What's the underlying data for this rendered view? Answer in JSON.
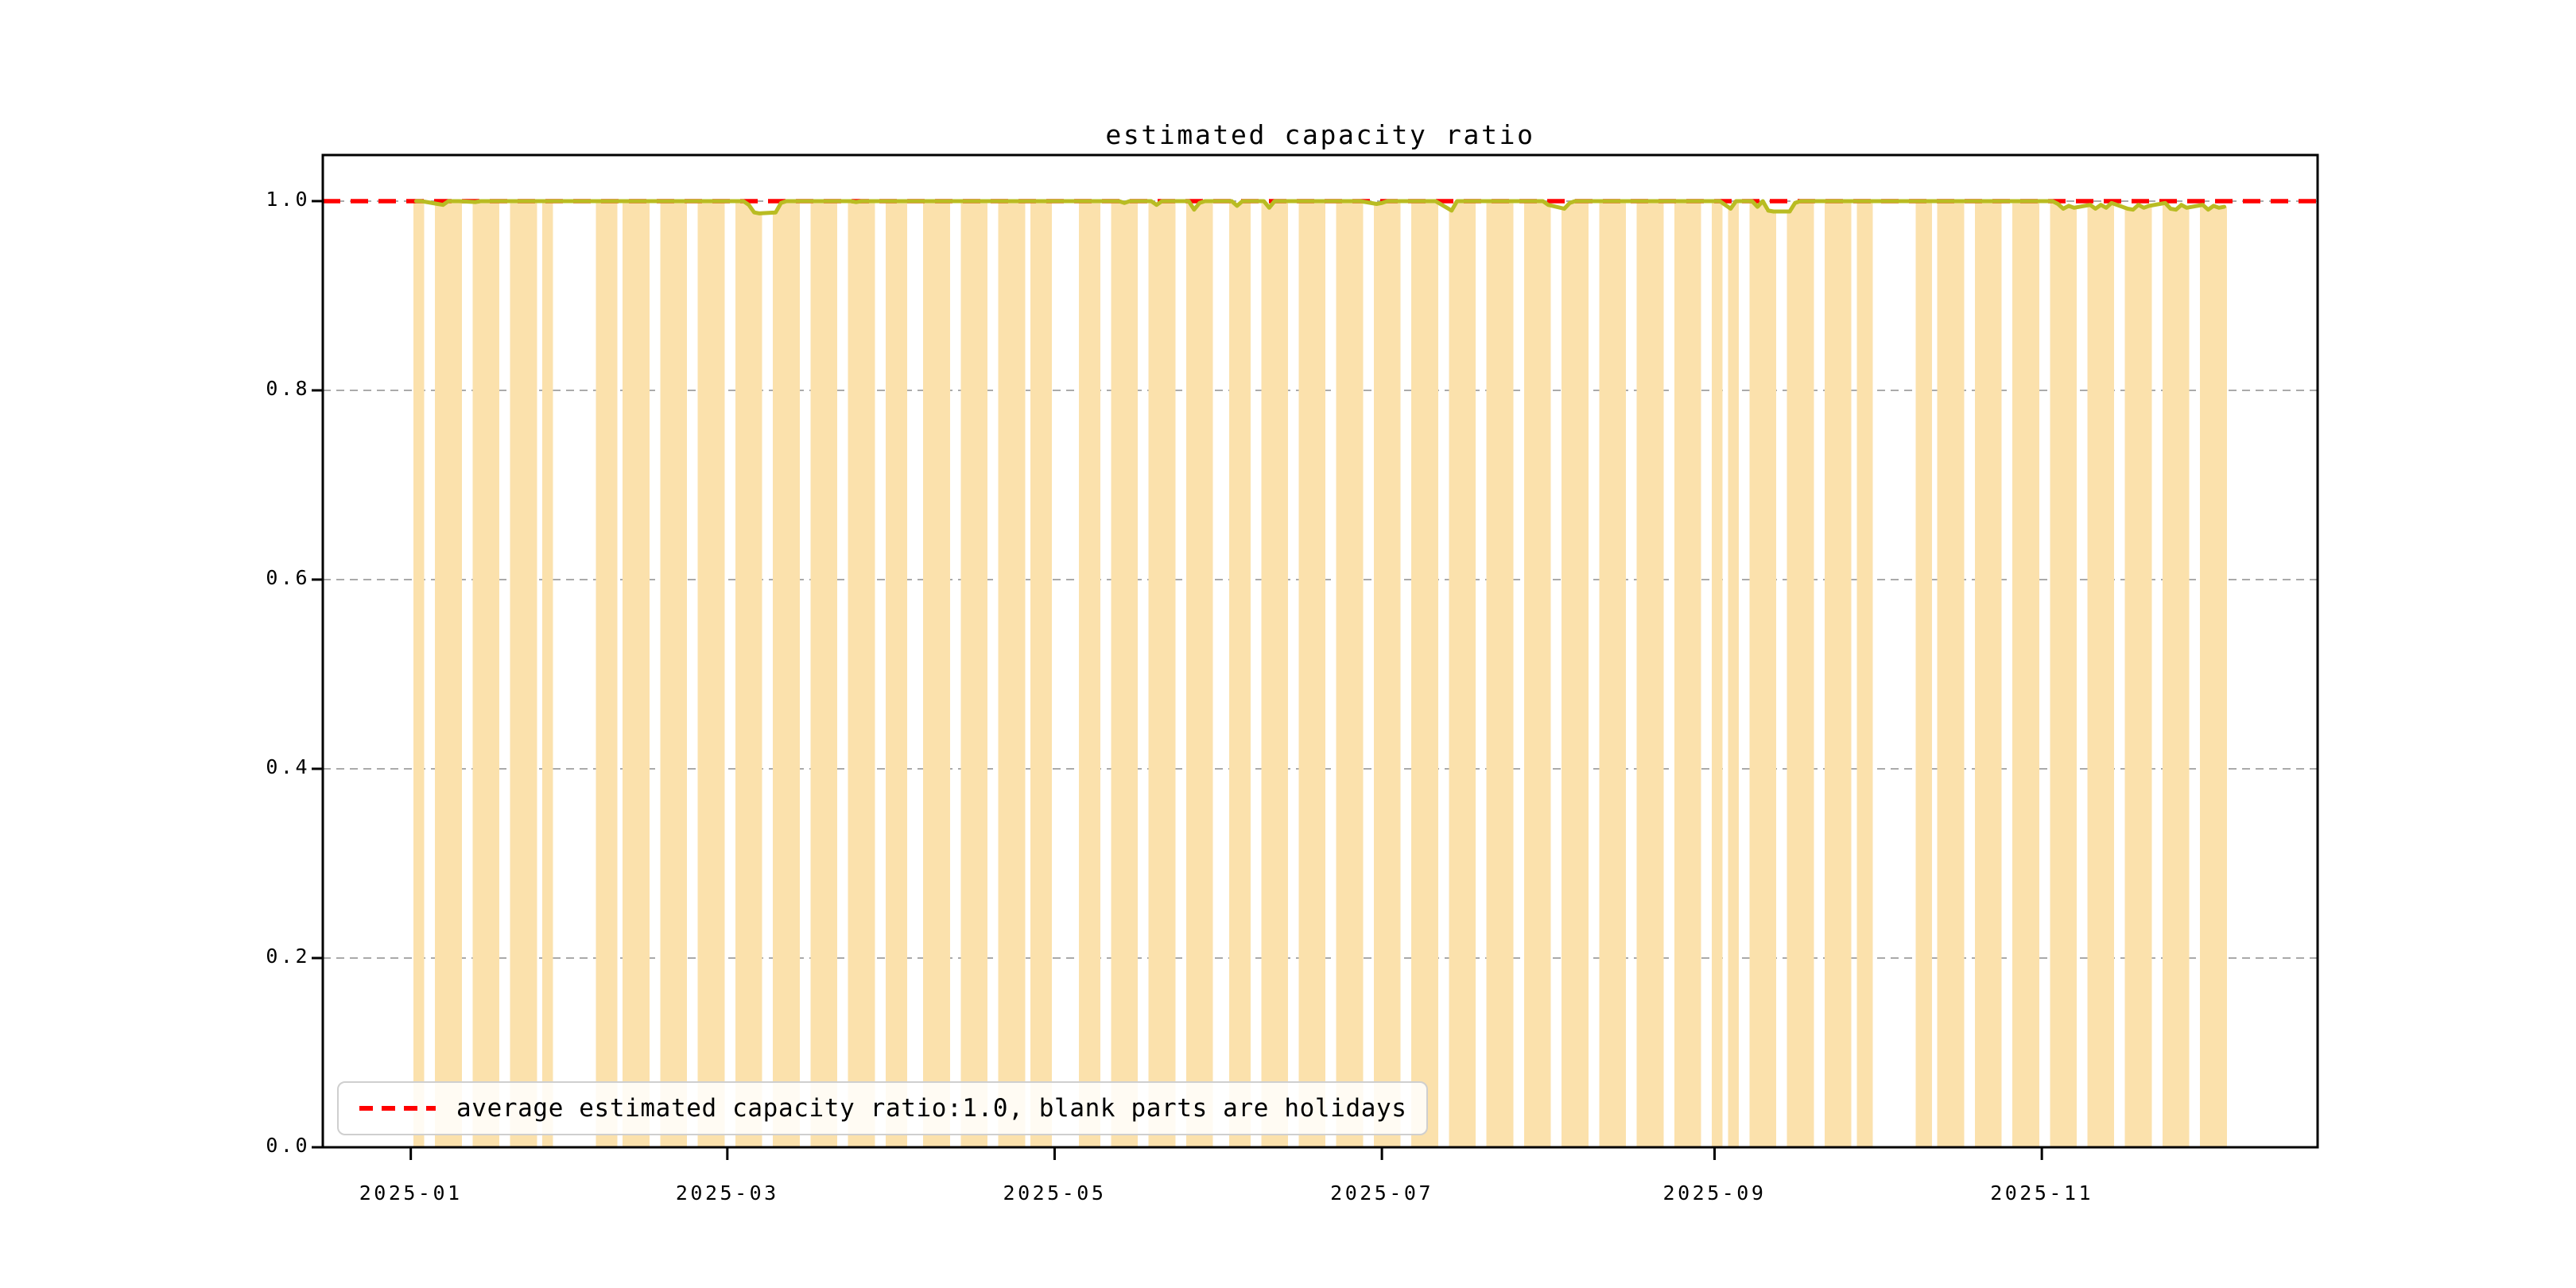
{
  "chart_data": {
    "type": "bar+line",
    "title": "estimated capacity ratio",
    "x_axis": {
      "start_date": "2025-01-01",
      "xlim_days": [
        -16.4,
        355.4
      ],
      "ticks": [
        {
          "day": 0,
          "label": "2025-01"
        },
        {
          "day": 59,
          "label": "2025-03"
        },
        {
          "day": 120,
          "label": "2025-05"
        },
        {
          "day": 181,
          "label": "2025-07"
        },
        {
          "day": 243,
          "label": "2025-09"
        },
        {
          "day": 304,
          "label": "2025-11"
        }
      ]
    },
    "y_axis": {
      "ylim": [
        0,
        1.0487
      ],
      "grid": true,
      "ticks": [
        {
          "value": 0.0,
          "label": "0.0"
        },
        {
          "value": 0.2,
          "label": "0.2"
        },
        {
          "value": 0.4,
          "label": "0.4"
        },
        {
          "value": 0.6,
          "label": "0.6"
        },
        {
          "value": 0.8,
          "label": "0.8"
        },
        {
          "value": 1.0,
          "label": "1.0"
        }
      ]
    },
    "series": {
      "default_ratio": 1.0,
      "work_periods_day_ranges": [
        [
          1,
          2
        ],
        [
          5,
          9
        ],
        [
          12,
          16
        ],
        [
          19,
          23
        ],
        [
          25,
          26
        ],
        [
          35,
          38
        ],
        [
          40,
          44
        ],
        [
          47,
          51
        ],
        [
          54,
          58
        ],
        [
          61,
          65
        ],
        [
          68,
          72
        ],
        [
          75,
          79
        ],
        [
          82,
          86
        ],
        [
          89,
          92
        ],
        [
          96,
          100
        ],
        [
          103,
          107
        ],
        [
          110,
          114
        ],
        [
          116,
          119
        ],
        [
          125,
          128
        ],
        [
          131,
          135
        ],
        [
          138,
          142
        ],
        [
          145,
          149
        ],
        [
          153,
          156
        ],
        [
          159,
          163
        ],
        [
          166,
          170
        ],
        [
          173,
          177
        ],
        [
          180,
          184
        ],
        [
          187,
          191
        ],
        [
          194,
          198
        ],
        [
          201,
          205
        ],
        [
          208,
          212
        ],
        [
          215,
          219
        ],
        [
          222,
          226
        ],
        [
          229,
          233
        ],
        [
          236,
          240
        ],
        [
          243,
          244
        ],
        [
          246,
          247
        ],
        [
          250,
          254
        ],
        [
          257,
          261
        ],
        [
          264,
          268
        ],
        [
          270,
          272
        ],
        [
          281,
          283
        ],
        [
          285,
          289
        ],
        [
          292,
          296
        ],
        [
          299,
          303
        ],
        [
          306,
          310
        ],
        [
          313,
          317
        ],
        [
          320,
          324
        ],
        [
          327,
          331
        ],
        [
          334,
          338
        ]
      ],
      "ratio_deviations": {
        "5": 0.997,
        "6": 0.996,
        "12": 0.999,
        "63": 0.996,
        "64": 0.988,
        "65": 0.987,
        "68": 0.988,
        "69": 0.998,
        "83": 0.999,
        "133": 0.998,
        "139": 0.996,
        "146": 0.991,
        "147": 0.998,
        "154": 0.995,
        "160": 0.993,
        "180": 0.997,
        "181": 0.998,
        "194": 0.99,
        "212": 0.996,
        "215": 0.992,
        "216": 0.998,
        "246": 0.992,
        "251": 0.994,
        "253": 0.99,
        "254": 0.989,
        "257": 0.989,
        "258": 0.998,
        "307": 0.997,
        "308": 0.992,
        "309": 0.995,
        "310": 0.993,
        "313": 0.996,
        "314": 0.992,
        "315": 0.996,
        "316": 0.993,
        "317": 0.998,
        "320": 0.992,
        "321": 0.991,
        "322": 0.996,
        "323": 0.993,
        "324": 0.995,
        "327": 0.998,
        "328": 0.992,
        "329": 0.991,
        "330": 0.996,
        "331": 0.993,
        "334": 0.996,
        "335": 0.991,
        "336": 0.995,
        "337": 0.993,
        "338": 0.994
      }
    },
    "average_line": {
      "value": 1.0,
      "style": "dashed",
      "color": "#ff0000"
    },
    "legend": {
      "label": "average estimated capacity ratio:1.0, blank parts are holidays"
    },
    "colors": {
      "bar": "#fbe1ac",
      "line": "#b9bc22",
      "average_line": "#ff0000",
      "grid": "#aaaaaa",
      "axis": "#000000"
    }
  }
}
